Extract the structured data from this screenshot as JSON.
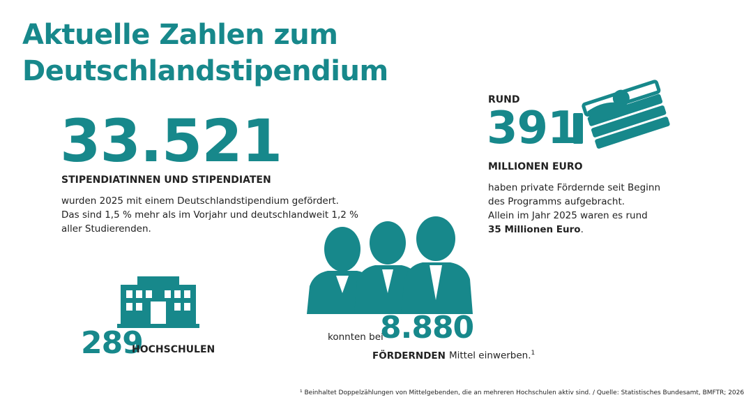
{
  "title": [
    "Aktuelle Zahlen zum",
    "Deutschlandstipendium"
  ],
  "students": {
    "number": "33.521",
    "label": "STIPENDIATINNEN UND STIPENDIATEN",
    "text": [
      "wurden 2025 mit einem Deutschlandstipendium gefördert.",
      "Das sind 1,5 % mehr als im Vorjahr und deutschlandweit 1,2 %",
      "aller Studierenden."
    ]
  },
  "funding": {
    "prefix": "RUND",
    "number": "391",
    "label": "MILLIONEN EURO",
    "text": [
      "haben private Fördernde seit Beginn",
      "des Programms aufgebracht.",
      "Allein im Jahr 2025 waren es rund"
    ],
    "highlight": "35 Millionen Euro",
    "end": "."
  },
  "universities": {
    "number": "289",
    "label": "HOCHSCHULEN"
  },
  "sponsors": {
    "prefix": "konnten bei",
    "number": "8.880",
    "label": "FÖRDERNDEN",
    "text": "Mittel einwerben.",
    "footnote_mark": "1"
  },
  "footnote": "¹ Beinhaltet Doppelzählungen von Mittelgebenden, die an mehreren Hochschulen aktiv sind. / Quelle: Statistisches Bundesamt, BMFTR; 2026"
}
